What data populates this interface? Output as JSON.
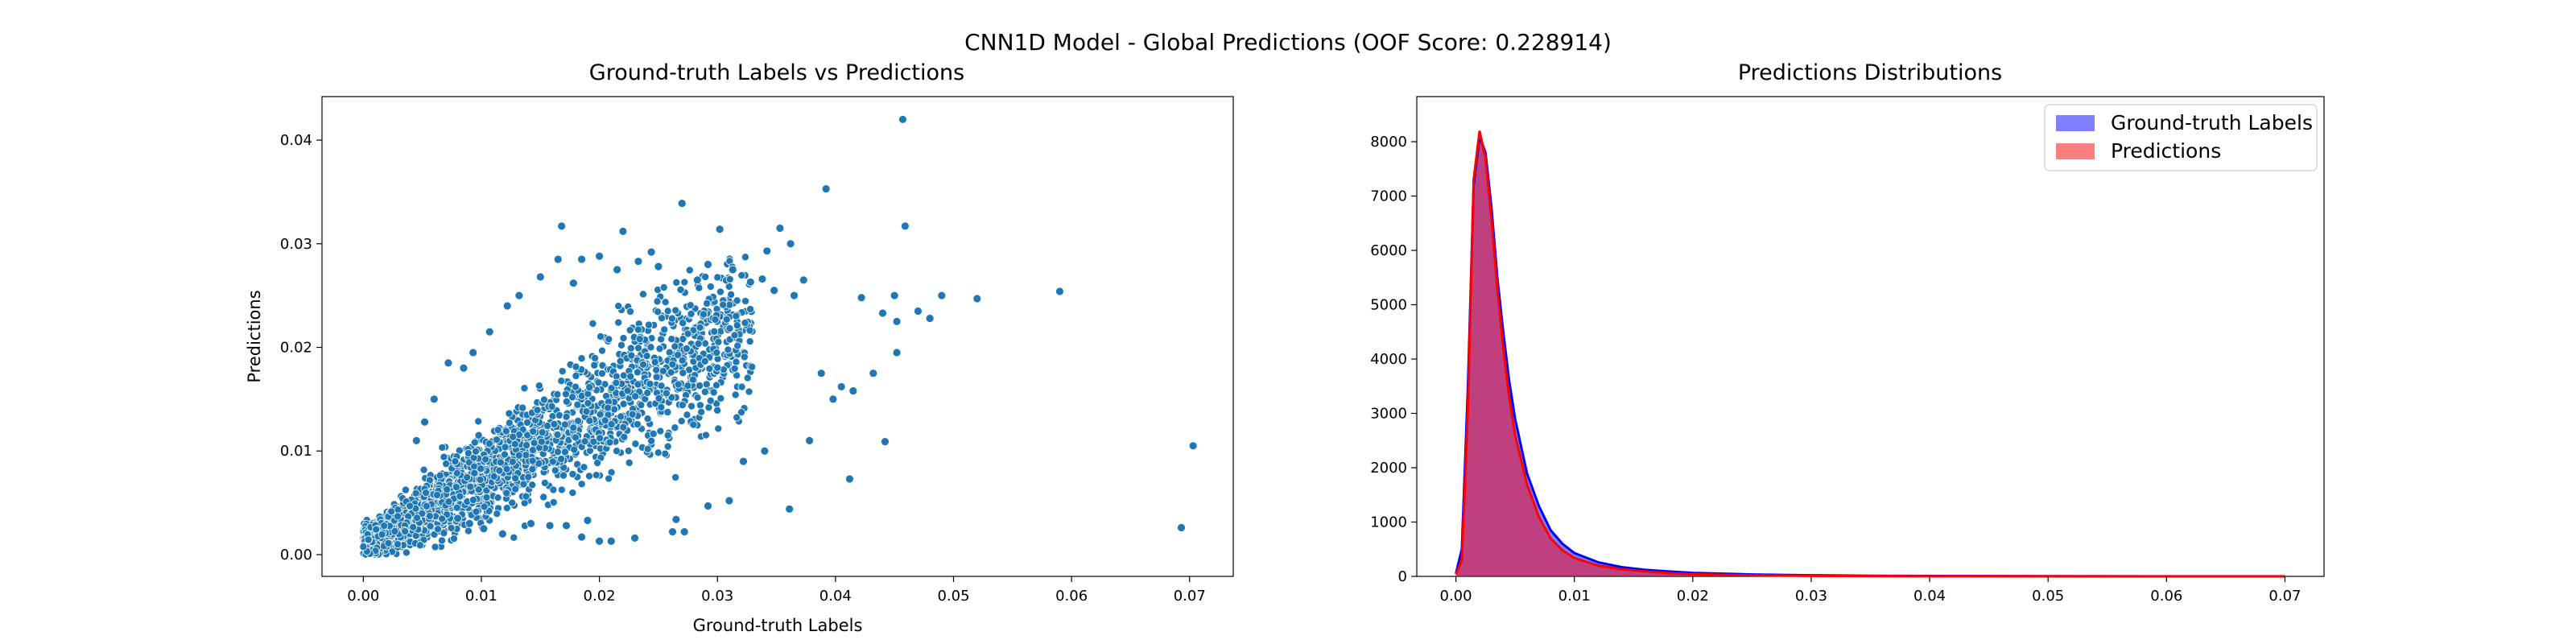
{
  "figure": {
    "suptitle": "CNN1D Model - Global Predictions (OOF Score: 0.228914)"
  },
  "chart_data": [
    {
      "type": "scatter",
      "title": "Ground-truth Labels vs Predictions",
      "xlabel": "Ground-truth Labels",
      "ylabel": "Predictions",
      "xlim": [
        -0.0035,
        0.0737
      ],
      "ylim": [
        -0.0021,
        0.0442
      ],
      "xticks": [
        0.0,
        0.01,
        0.02,
        0.03,
        0.04,
        0.05,
        0.06,
        0.07
      ],
      "xtick_labels": [
        "0.00",
        "0.01",
        "0.02",
        "0.03",
        "0.04",
        "0.05",
        "0.06",
        "0.07"
      ],
      "yticks": [
        0.0,
        0.01,
        0.02,
        0.03,
        0.04
      ],
      "ytick_labels": [
        "0.00",
        "0.01",
        "0.02",
        "0.03",
        "0.04"
      ],
      "grid": false,
      "marker_color": "#1f77b4",
      "series": [
        {
          "name": "",
          "note_points": "outliers read from figure; dense cloud approximated",
          "points": [
            [
              0.0457,
              0.042
            ],
            [
              0.0392,
              0.0353
            ],
            [
              0.0459,
              0.0317
            ],
            [
              0.0168,
              0.0317
            ],
            [
              0.027,
              0.0339
            ],
            [
              0.0302,
              0.0314
            ],
            [
              0.0353,
              0.0315
            ],
            [
              0.0342,
              0.0293
            ],
            [
              0.0362,
              0.03
            ],
            [
              0.022,
              0.0312
            ],
            [
              0.059,
              0.0254
            ],
            [
              0.0703,
              0.0105
            ],
            [
              0.0693,
              0.0026
            ],
            [
              0.052,
              0.0247
            ],
            [
              0.049,
              0.025
            ],
            [
              0.047,
              0.0235
            ],
            [
              0.045,
              0.025
            ],
            [
              0.048,
              0.0228
            ],
            [
              0.0422,
              0.0248
            ],
            [
              0.044,
              0.0233
            ],
            [
              0.0452,
              0.0225
            ],
            [
              0.0432,
              0.0175
            ],
            [
              0.0452,
              0.0195
            ],
            [
              0.0415,
              0.0158
            ],
            [
              0.0405,
              0.0162
            ],
            [
              0.0412,
              0.0073
            ],
            [
              0.0442,
              0.0109
            ],
            [
              0.0398,
              0.015
            ],
            [
              0.0388,
              0.0175
            ],
            [
              0.0361,
              0.0044
            ],
            [
              0.0378,
              0.011
            ],
            [
              0.034,
              0.01
            ],
            [
              0.0322,
              0.009
            ],
            [
              0.031,
              0.0052
            ],
            [
              0.0292,
              0.0047
            ],
            [
              0.0265,
              0.0034
            ],
            [
              0.0262,
              0.0022
            ],
            [
              0.0272,
              0.0022
            ],
            [
              0.023,
              0.0016
            ],
            [
              0.021,
              0.0013
            ],
            [
              0.02,
              0.0013
            ],
            [
              0.0185,
              0.0017
            ],
            [
              0.019,
              0.0033
            ],
            [
              0.0172,
              0.0028
            ],
            [
              0.0158,
              0.0028
            ],
            [
              0.0142,
              0.003
            ],
            [
              0.02,
              0.0288
            ],
            [
              0.0185,
              0.0285
            ],
            [
              0.0215,
              0.0275
            ],
            [
              0.025,
              0.0278
            ],
            [
              0.0244,
              0.0292
            ],
            [
              0.0233,
              0.0283
            ],
            [
              0.0283,
              0.0265
            ],
            [
              0.0292,
              0.028
            ],
            [
              0.0313,
              0.0275
            ],
            [
              0.0328,
              0.0263
            ],
            [
              0.0338,
              0.0266
            ],
            [
              0.0348,
              0.0255
            ],
            [
              0.0365,
              0.025
            ],
            [
              0.0373,
              0.0265
            ],
            [
              0.0093,
              0.0195
            ],
            [
              0.0072,
              0.0185
            ],
            [
              0.0107,
              0.0215
            ],
            [
              0.0122,
              0.024
            ],
            [
              0.0132,
              0.025
            ],
            [
              0.015,
              0.0268
            ],
            [
              0.0165,
              0.0285
            ],
            [
              0.0178,
              0.0262
            ],
            [
              0.006,
              0.015
            ],
            [
              0.0052,
              0.0128
            ],
            [
              0.0045,
              0.011
            ],
            [
              0.0085,
              0.018
            ],
            [
              0.0118,
              0.002
            ],
            [
              0.0102,
              0.0025
            ],
            [
              0.009,
              0.003
            ],
            [
              0.008,
              0.0035
            ]
          ]
        }
      ]
    },
    {
      "type": "histogram",
      "title": "Predictions Distributions",
      "xlabel": "",
      "ylabel": "",
      "xlim": [
        -0.0033,
        0.0733
      ],
      "ylim": [
        0,
        8830
      ],
      "xticks": [
        0.0,
        0.01,
        0.02,
        0.03,
        0.04,
        0.05,
        0.06,
        0.07
      ],
      "xtick_labels": [
        "0.00",
        "0.01",
        "0.02",
        "0.03",
        "0.04",
        "0.05",
        "0.06",
        "0.07"
      ],
      "yticks": [
        0,
        1000,
        2000,
        3000,
        4000,
        5000,
        6000,
        7000,
        8000
      ],
      "ytick_labels": [
        "0",
        "1000",
        "2000",
        "3000",
        "4000",
        "5000",
        "6000",
        "7000",
        "8000"
      ],
      "grid": false,
      "legend": "top-right",
      "x": [
        0.0,
        0.0005,
        0.001,
        0.0015,
        0.002,
        0.0025,
        0.003,
        0.0035,
        0.004,
        0.0045,
        0.005,
        0.006,
        0.007,
        0.008,
        0.009,
        0.01,
        0.012,
        0.014,
        0.016,
        0.018,
        0.02,
        0.025,
        0.03,
        0.035,
        0.04,
        0.05,
        0.06,
        0.07
      ],
      "series": [
        {
          "name": "Ground-truth Labels",
          "color": "#0000ff",
          "values": [
            50,
            500,
            3400,
            7200,
            8100,
            7800,
            6800,
            5500,
            4500,
            3600,
            2900,
            1900,
            1300,
            850,
            600,
            430,
            260,
            170,
            120,
            90,
            65,
            35,
            20,
            12,
            8,
            4,
            2,
            1
          ]
        },
        {
          "name": "Predictions",
          "color": "#ff0000",
          "values": [
            40,
            300,
            3000,
            7300,
            8200,
            7700,
            6600,
            5300,
            4200,
            3300,
            2600,
            1700,
            1100,
            700,
            480,
            340,
            200,
            130,
            90,
            60,
            40,
            20,
            10,
            5,
            3,
            1,
            0,
            0
          ]
        }
      ]
    }
  ]
}
